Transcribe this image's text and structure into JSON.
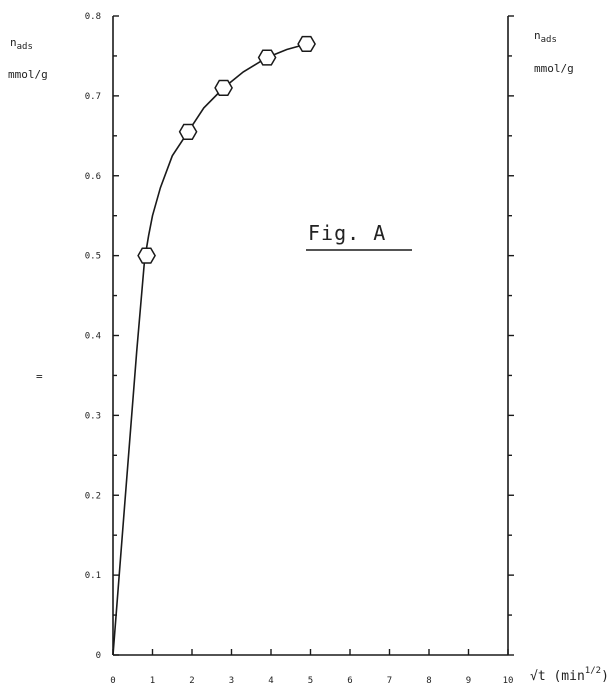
{
  "chart_data": {
    "type": "scatter",
    "title": "Fig. A",
    "ylabel_left": {
      "main": "n",
      "sub": "ads",
      "unit": "mmol/g"
    },
    "ylabel_right": {
      "main": "n",
      "sub": "ads",
      "unit": "mmol/g"
    },
    "xlabel": {
      "prefix": "√t (min",
      "superscript": "1/2",
      "suffix": ")"
    },
    "stray_mark": "=",
    "xlim": [
      0,
      10
    ],
    "ylim": [
      0,
      0.8
    ],
    "x_ticks": [
      "0",
      "1",
      "2",
      "3",
      "4",
      "5",
      "6",
      "7",
      "8",
      "9",
      "10"
    ],
    "y_ticks": [
      "0",
      "0.1",
      "0.2",
      "0.3",
      "0.4",
      "0.5",
      "0.6",
      "0.7",
      "0.8"
    ],
    "series": [
      {
        "marker": "hexagon",
        "x": [
          0.85,
          1.9,
          2.8,
          3.9,
          4.9
        ],
        "y": [
          0.5,
          0.655,
          0.71,
          0.748,
          0.765
        ]
      }
    ],
    "fit_curve": {
      "x": [
        0,
        0.3,
        0.6,
        0.8,
        0.9,
        1.0,
        1.2,
        1.5,
        1.9,
        2.3,
        2.8,
        3.3,
        3.9,
        4.4,
        4.9
      ],
      "y": [
        0,
        0.19,
        0.38,
        0.495,
        0.525,
        0.55,
        0.585,
        0.625,
        0.655,
        0.685,
        0.71,
        0.73,
        0.748,
        0.758,
        0.765
      ]
    },
    "grid": false,
    "legend": "none"
  }
}
